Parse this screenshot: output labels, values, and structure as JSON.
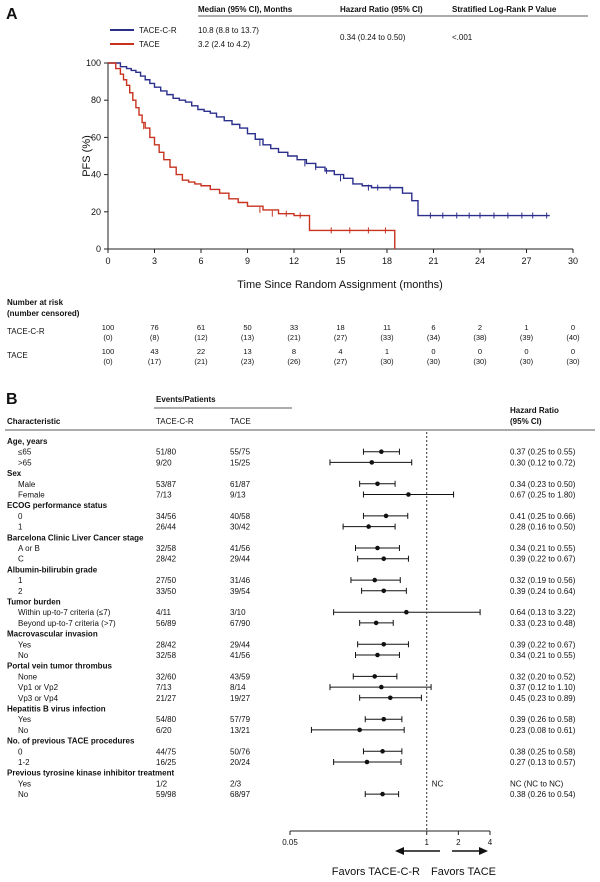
{
  "panel_a": {
    "label": "A",
    "header": {
      "median": "Median (95% CI), Months",
      "hr": "Hazard Ratio (95% CI)",
      "logrank": "Stratified Log-Rank P Value"
    },
    "legend": [
      {
        "name": "TACE-C-R",
        "color": "#2b2f8c",
        "median": "10.8 (8.8 to 13.7)"
      },
      {
        "name": "TACE",
        "color": "#c8321f",
        "median": "3.2 (2.4 to 4.2)"
      }
    ],
    "hr_value": "0.34 (0.24 to 0.50)",
    "p_value": "<.001",
    "risk_title_1": "Number at risk",
    "risk_title_2": "(number censored)",
    "risk_table": [
      {
        "arm": "TACE-C-R",
        "n": [
          "100",
          "76",
          "61",
          "50",
          "33",
          "18",
          "11",
          "6",
          "2",
          "1",
          "0"
        ],
        "c": [
          "(0)",
          "(8)",
          "(12)",
          "(13)",
          "(21)",
          "(27)",
          "(33)",
          "(34)",
          "(38)",
          "(39)",
          "(40)"
        ]
      },
      {
        "arm": "TACE",
        "n": [
          "100",
          "43",
          "22",
          "13",
          "8",
          "4",
          "1",
          "0",
          "0",
          "0",
          "0"
        ],
        "c": [
          "(0)",
          "(17)",
          "(21)",
          "(23)",
          "(26)",
          "(27)",
          "(30)",
          "(30)",
          "(30)",
          "(30)",
          "(30)"
        ]
      }
    ]
  },
  "panel_b": {
    "label": "B",
    "events_header": "Events/Patients",
    "col_characteristic": "Characteristic",
    "col_tace_cr": "TACE-C-R",
    "col_tace": "TACE",
    "col_hr_1": "Hazard Ratio",
    "col_hr_2": "(95% CI)",
    "nc_label": "NC",
    "favors_left": "Favors TACE-C-R",
    "favors_right": "Favors TACE"
  },
  "chart_data": [
    {
      "type": "line",
      "subtype": "kaplan-meier",
      "xlabel": "Time Since Random Assignment (months)",
      "ylabel": "PFS (%)",
      "xlim": [
        0,
        30
      ],
      "ylim": [
        0,
        100
      ],
      "xticks": [
        "0",
        "3",
        "6",
        "9",
        "12",
        "15",
        "18",
        "21",
        "24",
        "27",
        "30"
      ],
      "yticks": [
        "0",
        "20",
        "40",
        "60",
        "80",
        "100"
      ],
      "series": [
        {
          "name": "TACE-C-R",
          "color": "#2b2f8c",
          "x": [
            0,
            0.8,
            1.2,
            1.5,
            1.8,
            2.1,
            2.4,
            2.7,
            3.0,
            3.4,
            3.8,
            4.2,
            4.6,
            5.0,
            5.4,
            5.8,
            6.2,
            6.6,
            7.0,
            7.5,
            8.0,
            8.5,
            9.0,
            9.5,
            10.0,
            10.5,
            11.0,
            11.6,
            12.2,
            12.8,
            13.4,
            14.0,
            14.6,
            15.2,
            15.8,
            16.4,
            17.0,
            17.6,
            18.2,
            19.0,
            19.6,
            20.0,
            28.5
          ],
          "y": [
            100,
            98,
            97,
            96,
            95,
            93,
            91,
            89,
            87,
            85,
            83,
            81,
            80,
            79,
            77,
            75,
            74,
            73,
            71,
            69,
            67,
            65,
            62,
            59,
            56,
            54,
            52,
            50,
            48,
            46,
            44,
            42,
            40,
            38,
            35,
            34,
            33,
            33,
            33,
            30,
            26,
            18,
            18
          ]
        },
        {
          "name": "TACE",
          "color": "#c8321f",
          "x": [
            0,
            0.5,
            0.8,
            1.0,
            1.2,
            1.4,
            1.6,
            1.8,
            2.0,
            2.2,
            2.4,
            2.7,
            3.0,
            3.3,
            3.6,
            4.0,
            4.4,
            4.8,
            5.2,
            5.6,
            6.0,
            6.6,
            7.2,
            7.8,
            8.4,
            9.0,
            10.0,
            11.0,
            12.0,
            13.0,
            18.5
          ],
          "y": [
            100,
            97,
            94,
            91,
            88,
            84,
            80,
            76,
            72,
            68,
            65,
            60,
            56,
            52,
            48,
            44,
            40,
            37,
            36,
            35,
            34,
            32,
            30,
            27,
            25,
            23,
            21,
            19,
            18,
            10,
            10
          ]
        }
      ],
      "censor_marks": {
        "TACE-C-R": [
          {
            "x": 9.8,
            "y": 57
          },
          {
            "x": 12.7,
            "y": 46
          },
          {
            "x": 13.4,
            "y": 44
          },
          {
            "x": 14.1,
            "y": 42
          },
          {
            "x": 15.0,
            "y": 38
          },
          {
            "x": 16.8,
            "y": 33
          },
          {
            "x": 17.4,
            "y": 33
          },
          {
            "x": 18.2,
            "y": 33
          },
          {
            "x": 20.8,
            "y": 18
          },
          {
            "x": 21.6,
            "y": 18
          },
          {
            "x": 22.5,
            "y": 18
          },
          {
            "x": 23.3,
            "y": 18
          },
          {
            "x": 24.0,
            "y": 18
          },
          {
            "x": 24.9,
            "y": 18
          },
          {
            "x": 25.8,
            "y": 18
          },
          {
            "x": 26.7,
            "y": 18
          },
          {
            "x": 27.4,
            "y": 18
          },
          {
            "x": 28.3,
            "y": 18
          }
        ],
        "TACE": [
          {
            "x": 2.3,
            "y": 66
          },
          {
            "x": 9.8,
            "y": 21
          },
          {
            "x": 10.6,
            "y": 19
          },
          {
            "x": 11.5,
            "y": 19
          },
          {
            "x": 12.4,
            "y": 18
          },
          {
            "x": 14.4,
            "y": 10
          },
          {
            "x": 15.6,
            "y": 10
          },
          {
            "x": 16.8,
            "y": 10
          },
          {
            "x": 17.9,
            "y": 10
          }
        ]
      },
      "risk_times": [
        0,
        3,
        6,
        9,
        12,
        15,
        18,
        21,
        24,
        27,
        30
      ]
    },
    {
      "type": "forest",
      "xlabel": "Hazard Ratio",
      "scale": "log",
      "xlim": [
        0.05,
        4
      ],
      "xticks": [
        {
          "value": 0.05,
          "label": "0.05"
        },
        {
          "value": 1,
          "label": "1"
        },
        {
          "value": 2,
          "label": "2"
        },
        {
          "value": 4,
          "label": "4"
        }
      ],
      "reference_line": 1,
      "rows": [
        {
          "label": "Age, years",
          "header": true
        },
        {
          "label": "≤65",
          "a": "51/80",
          "b": "55/75",
          "hr": 0.37,
          "lo": 0.25,
          "hi": 0.55,
          "ci": "0.37 (0.25 to 0.55)"
        },
        {
          "label": ">65",
          "a": "9/20",
          "b": "15/25",
          "hr": 0.3,
          "lo": 0.12,
          "hi": 0.72,
          "ci": "0.30 (0.12 to 0.72)"
        },
        {
          "label": "Sex",
          "header": true
        },
        {
          "label": "Male",
          "a": "53/87",
          "b": "61/87",
          "hr": 0.34,
          "lo": 0.23,
          "hi": 0.5,
          "ci": "0.34 (0.23 to 0.50)"
        },
        {
          "label": "Female",
          "a": "7/13",
          "b": "9/13",
          "hr": 0.67,
          "lo": 0.25,
          "hi": 1.8,
          "ci": "0.67 (0.25 to 1.80)"
        },
        {
          "label": "ECOG performance status",
          "header": true
        },
        {
          "label": "0",
          "a": "34/56",
          "b": "40/58",
          "hr": 0.41,
          "lo": 0.25,
          "hi": 0.66,
          "ci": "0.41 (0.25 to 0.66)"
        },
        {
          "label": "1",
          "a": "26/44",
          "b": "30/42",
          "hr": 0.28,
          "lo": 0.16,
          "hi": 0.5,
          "ci": "0.28 (0.16 to 0.50)"
        },
        {
          "label": "Barcelona Clinic Liver Cancer stage",
          "header": true
        },
        {
          "label": "A or B",
          "a": "32/58",
          "b": "41/56",
          "hr": 0.34,
          "lo": 0.21,
          "hi": 0.55,
          "ci": "0.34 (0.21 to 0.55)"
        },
        {
          "label": "C",
          "a": "28/42",
          "b": "29/44",
          "hr": 0.39,
          "lo": 0.22,
          "hi": 0.67,
          "ci": "0.39 (0.22 to 0.67)"
        },
        {
          "label": "Albumin-bilirubin grade",
          "header": true
        },
        {
          "label": "1",
          "a": "27/50",
          "b": "31/46",
          "hr": 0.32,
          "lo": 0.19,
          "hi": 0.56,
          "ci": "0.32 (0.19 to 0.56)"
        },
        {
          "label": "2",
          "a": "33/50",
          "b": "39/54",
          "hr": 0.39,
          "lo": 0.24,
          "hi": 0.64,
          "ci": "0.39 (0.24 to 0.64)"
        },
        {
          "label": "Tumor burden",
          "header": true
        },
        {
          "label": "Within up-to-7 criteria (≤7)",
          "a": "4/11",
          "b": "3/10",
          "hr": 0.64,
          "lo": 0.13,
          "hi": 3.22,
          "ci": "0.64 (0.13 to 3.22)"
        },
        {
          "label": "Beyond up-to-7 criteria (>7)",
          "a": "56/89",
          "b": "67/90",
          "hr": 0.33,
          "lo": 0.23,
          "hi": 0.48,
          "ci": "0.33 (0.23 to 0.48)"
        },
        {
          "label": "Macrovascular invasion",
          "header": true
        },
        {
          "label": "Yes",
          "a": "28/42",
          "b": "29/44",
          "hr": 0.39,
          "lo": 0.22,
          "hi": 0.67,
          "ci": "0.39 (0.22 to 0.67)"
        },
        {
          "label": "No",
          "a": "32/58",
          "b": "41/56",
          "hr": 0.34,
          "lo": 0.21,
          "hi": 0.55,
          "ci": "0.34 (0.21 to 0.55)"
        },
        {
          "label": "Portal vein tumor thrombus",
          "header": true
        },
        {
          "label": "None",
          "a": "32/60",
          "b": "43/59",
          "hr": 0.32,
          "lo": 0.2,
          "hi": 0.52,
          "ci": "0.32 (0.20 to 0.52)"
        },
        {
          "label": "Vp1 or Vp2",
          "a": "7/13",
          "b": "8/14",
          "hr": 0.37,
          "lo": 0.12,
          "hi": 1.1,
          "ci": "0.37 (0.12 to 1.10)"
        },
        {
          "label": "Vp3 or Vp4",
          "a": "21/27",
          "b": "19/27",
          "hr": 0.45,
          "lo": 0.23,
          "hi": 0.89,
          "ci": "0.45 (0.23 to 0.89)"
        },
        {
          "label": "Hepatitis B virus infection",
          "header": true
        },
        {
          "label": "Yes",
          "a": "54/80",
          "b": "57/79",
          "hr": 0.39,
          "lo": 0.26,
          "hi": 0.58,
          "ci": "0.39 (0.26 to 0.58)"
        },
        {
          "label": "No",
          "a": "6/20",
          "b": "13/21",
          "hr": 0.23,
          "lo": 0.08,
          "hi": 0.61,
          "ci": "0.23 (0.08 to 0.61)"
        },
        {
          "label": "No. of previous TACE procedures",
          "header": true
        },
        {
          "label": "0",
          "a": "44/75",
          "b": "50/76",
          "hr": 0.38,
          "lo": 0.25,
          "hi": 0.58,
          "ci": "0.38 (0.25 to 0.58)"
        },
        {
          "label": "1-2",
          "a": "16/25",
          "b": "20/24",
          "hr": 0.27,
          "lo": 0.13,
          "hi": 0.57,
          "ci": "0.27 (0.13 to 0.57)"
        },
        {
          "label": "Previous tyrosine kinase inhibitor treatment",
          "header": true
        },
        {
          "label": "Yes",
          "a": "1/2",
          "b": "2/3",
          "hr": null,
          "ci": "NC (NC to NC)"
        },
        {
          "label": "No",
          "a": "59/98",
          "b": "68/97",
          "hr": 0.38,
          "lo": 0.26,
          "hi": 0.54,
          "ci": "0.38 (0.26 to 0.54)"
        }
      ]
    }
  ]
}
